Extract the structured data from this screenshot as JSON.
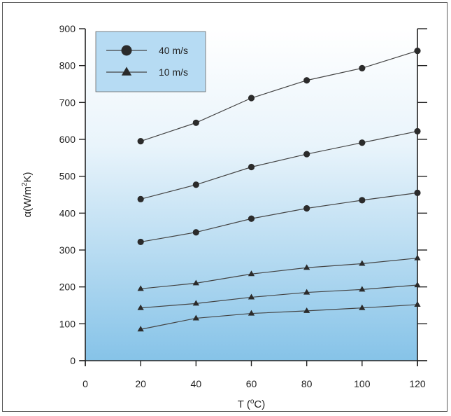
{
  "chart_data": {
    "type": "line",
    "xlabel": "T (",
    "xlabel_sup": "o",
    "xlabel_end": "C)",
    "ylabel": "α(W/m",
    "ylabel_sup": "2",
    "ylabel_end": "K)",
    "xlim": [
      0,
      120
    ],
    "ylim": [
      0,
      900
    ],
    "x_ticks": [
      0,
      20,
      40,
      60,
      80,
      100,
      120
    ],
    "y_ticks": [
      0,
      100,
      200,
      300,
      400,
      500,
      600,
      700,
      800,
      900
    ],
    "x": [
      20,
      40,
      60,
      80,
      100,
      120
    ],
    "grid": false,
    "legend_position": "top-left",
    "legend": [
      {
        "label": "40 m/s",
        "marker": "circle"
      },
      {
        "label": "10 m/s",
        "marker": "triangle"
      }
    ],
    "series": [
      {
        "marker": "circle",
        "values": [
          595,
          645,
          712,
          760,
          793,
          840
        ]
      },
      {
        "marker": "circle",
        "values": [
          438,
          477,
          525,
          560,
          591,
          622
        ]
      },
      {
        "marker": "circle",
        "values": [
          322,
          348,
          385,
          413,
          435,
          455
        ]
      },
      {
        "marker": "triangle",
        "values": [
          195,
          210,
          235,
          252,
          263,
          278
        ]
      },
      {
        "marker": "triangle",
        "values": [
          143,
          155,
          172,
          185,
          193,
          205
        ]
      },
      {
        "marker": "triangle",
        "values": [
          85,
          115,
          128,
          135,
          143,
          152
        ]
      }
    ],
    "colors": {
      "plot_top": "#ffffff",
      "plot_bottom": "#86c3e8",
      "legend_fill": "#b6dbf3",
      "line": "#444444",
      "marker": "#2b2b2b"
    }
  }
}
